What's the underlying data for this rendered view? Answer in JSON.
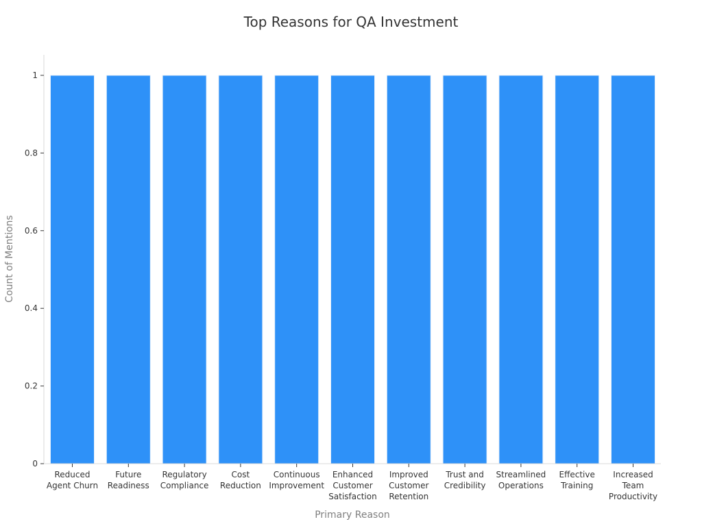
{
  "chart_data": {
    "type": "bar",
    "title": "Top Reasons for QA Investment",
    "xlabel": "Primary Reason",
    "ylabel": "Count of Mentions",
    "categories": [
      [
        "Reduced",
        "Agent Churn"
      ],
      [
        "Future",
        "Readiness"
      ],
      [
        "Regulatory",
        "Compliance"
      ],
      [
        "Cost",
        "Reduction"
      ],
      [
        "Continuous",
        "Improvement"
      ],
      [
        "Enhanced",
        "Customer",
        "Satisfaction"
      ],
      [
        "Improved",
        "Customer",
        "Retention"
      ],
      [
        "Trust and",
        "Credibility"
      ],
      [
        "Streamlined",
        "Operations"
      ],
      [
        "Effective",
        "Training"
      ],
      [
        "Increased",
        "Team",
        "Productivity"
      ]
    ],
    "values": [
      1,
      1,
      1,
      1,
      1,
      1,
      1,
      1,
      1,
      1,
      1
    ],
    "ylim": [
      0,
      1.053
    ],
    "yticks": [
      0,
      0.2,
      0.4,
      0.6,
      0.8,
      1
    ],
    "ytick_labels": [
      "0",
      "0.2",
      "0.4",
      "0.6",
      "0.8",
      "1"
    ],
    "bar_color": "#2e91f8",
    "grid": false,
    "legend": "none"
  }
}
